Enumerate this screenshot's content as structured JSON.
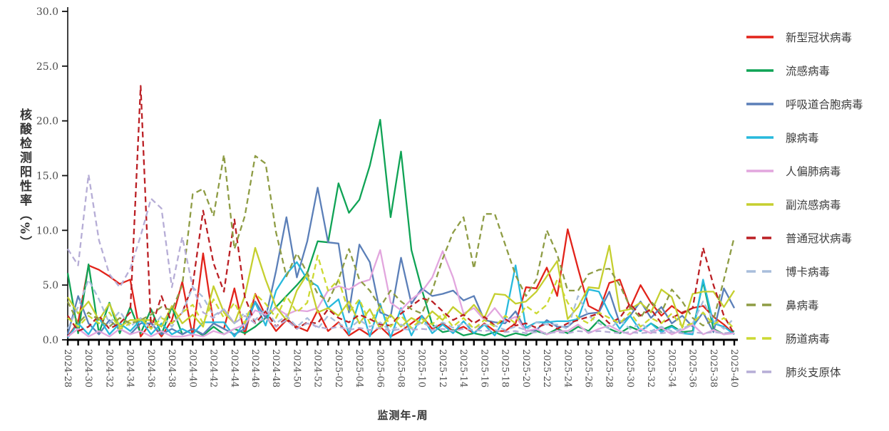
{
  "figure": {
    "background": "#ffffff",
    "x_axis_title": "监测年-周",
    "y_axis_title": "核酸检测阳性率（%）"
  },
  "chart_data": {
    "type": "line",
    "title": "",
    "xlabel": "监测年-周",
    "ylabel": "核酸检测阳性率（%）",
    "ylim": [
      0,
      30
    ],
    "ytick_step": 5,
    "ytick_labels": [
      "0.0",
      "5.0",
      "10.0",
      "15.0",
      "20.0",
      "25.0",
      "30.0"
    ],
    "grid": false,
    "legend_position": "right",
    "x_label_every": 2,
    "x_tick_labels_shown": [
      "2024-28",
      "2024-30",
      "2024-32",
      "2024-34",
      "2024-36",
      "2024-38",
      "2024-40",
      "2024-42",
      "2024-44",
      "2024-46",
      "2024-48",
      "2024-50",
      "2024-52",
      "2025-02",
      "2025-04",
      "2025-06",
      "2025-08",
      "2025-10",
      "2025-12",
      "2025-14",
      "2025-16",
      "2025-18",
      "2025-20",
      "2025-22",
      "2025-24",
      "2025-26",
      "2025-28",
      "2025-30",
      "2025-32",
      "2025-34",
      "2025-36",
      "2025-38",
      "2025-40"
    ],
    "x": [
      "2024-28",
      "2024-29",
      "2024-30",
      "2024-31",
      "2024-32",
      "2024-33",
      "2024-34",
      "2024-35",
      "2024-36",
      "2024-37",
      "2024-38",
      "2024-39",
      "2024-40",
      "2024-41",
      "2024-42",
      "2024-43",
      "2024-44",
      "2024-45",
      "2024-46",
      "2024-47",
      "2024-48",
      "2024-49",
      "2024-50",
      "2024-51",
      "2024-52",
      "2025-01",
      "2025-02",
      "2025-03",
      "2025-04",
      "2025-05",
      "2025-06",
      "2025-07",
      "2025-08",
      "2025-09",
      "2025-10",
      "2025-11",
      "2025-12",
      "2025-13",
      "2025-14",
      "2025-15",
      "2025-16",
      "2025-17",
      "2025-18",
      "2025-19",
      "2025-20",
      "2025-21",
      "2025-22",
      "2025-23",
      "2025-24",
      "2025-25",
      "2025-26",
      "2025-27",
      "2025-28",
      "2025-29",
      "2025-30",
      "2025-31",
      "2025-32",
      "2025-33",
      "2025-34",
      "2025-35",
      "2025-36",
      "2025-37",
      "2025-38",
      "2025-39",
      "2025-40"
    ],
    "series": [
      {
        "name": "新型冠状病毒",
        "color": "#e2231a",
        "dashed": false,
        "values": [
          0.3,
          1.6,
          6.8,
          6.4,
          5.8,
          5.1,
          5.5,
          0.3,
          1.6,
          0.3,
          1.8,
          5.3,
          0.3,
          7.9,
          1.5,
          1.0,
          4.7,
          0.5,
          4.2,
          2.2,
          0.8,
          1.8,
          1.2,
          0.8,
          2.7,
          0.8,
          1.6,
          0.4,
          1.0,
          0.4,
          1.2,
          0.3,
          0.8,
          1.5,
          2.2,
          1.0,
          1.5,
          0.8,
          1.2,
          0.6,
          1.5,
          0.8,
          0.8,
          1.5,
          4.8,
          4.7,
          6.6,
          4.0,
          10.1,
          6.5,
          3.1,
          2.6,
          5.2,
          5.5,
          2.9,
          5.0,
          3.4,
          2.2,
          3.1,
          2.4,
          2.9,
          3.1,
          2.1,
          1.4,
          0.5
        ]
      },
      {
        "name": "流感病毒",
        "color": "#0fa355",
        "dashed": false,
        "values": [
          6.1,
          0.6,
          6.9,
          0.6,
          3.4,
          0.6,
          3.0,
          0.6,
          2.8,
          0.5,
          3.0,
          0.5,
          1.0,
          0.4,
          1.2,
          0.5,
          1.0,
          0.6,
          1.2,
          2.0,
          3.0,
          4.0,
          5.0,
          6.1,
          9.0,
          8.9,
          14.3,
          11.6,
          12.8,
          15.9,
          20.1,
          11.2,
          17.2,
          8.2,
          4.6,
          1.4,
          0.7,
          0.9,
          0.4,
          0.6,
          0.4,
          0.7,
          0.3,
          0.6,
          0.4,
          0.8,
          0.5,
          1.0,
          0.6,
          1.2,
          0.8,
          1.8,
          1.0,
          0.6,
          1.2,
          0.8,
          1.5,
          0.9,
          1.3,
          0.7,
          0.8,
          5.3,
          1.0,
          0.5,
          0.8
        ]
      },
      {
        "name": "呼吸道合胞病毒",
        "color": "#5b7fb8",
        "dashed": false,
        "values": [
          0.5,
          4.0,
          1.5,
          0.5,
          1.8,
          1.0,
          0.5,
          1.5,
          1.5,
          0.5,
          1.0,
          0.5,
          1.0,
          0.5,
          1.5,
          1.0,
          0.5,
          1.0,
          3.5,
          2.0,
          6.3,
          11.2,
          5.7,
          9.0,
          13.9,
          8.9,
          8.8,
          2.5,
          8.7,
          7.1,
          2.5,
          2.1,
          7.5,
          3.3,
          4.7,
          4.0,
          4.2,
          4.5,
          3.6,
          4.0,
          1.8,
          1.6,
          1.5,
          2.6,
          0.8,
          0.9,
          1.8,
          1.2,
          1.2,
          2.0,
          2.4,
          2.5,
          4.4,
          1.5,
          2.2,
          3.5,
          2.0,
          3.0,
          1.5,
          2.2,
          1.2,
          2.5,
          0.7,
          4.7,
          2.9
        ]
      },
      {
        "name": "腺病毒",
        "color": "#27b9dc",
        "dashed": false,
        "values": [
          0.2,
          1.5,
          0.5,
          2.0,
          0.5,
          1.5,
          0.8,
          1.8,
          0.5,
          1.5,
          0.5,
          1.0,
          0.5,
          1.6,
          1.6,
          1.6,
          0.3,
          1.6,
          3.4,
          1.3,
          4.5,
          6.0,
          7.1,
          5.5,
          4.9,
          2.9,
          3.7,
          0.5,
          3.6,
          0.3,
          3.3,
          0.2,
          2.9,
          0.4,
          2.2,
          0.6,
          1.4,
          0.6,
          1.7,
          0.6,
          1.4,
          0.4,
          2.0,
          6.8,
          1.1,
          1.6,
          1.6,
          1.7,
          1.7,
          1.9,
          4.6,
          4.4,
          2.4,
          1.0,
          2.2,
          0.8,
          1.5,
          0.7,
          1.2,
          0.6,
          0.5,
          5.5,
          1.5,
          1.2,
          0.5
        ]
      },
      {
        "name": "人偏肺病毒",
        "color": "#e2a6de",
        "dashed": false,
        "values": [
          0.3,
          1.0,
          0.3,
          0.8,
          0.3,
          1.0,
          0.5,
          0.8,
          0.3,
          0.8,
          0.3,
          0.3,
          0.5,
          0.3,
          0.8,
          0.5,
          1.0,
          1.4,
          2.7,
          2.3,
          2.9,
          2.3,
          2.7,
          2.6,
          2.9,
          4.5,
          4.9,
          4.6,
          5.2,
          5.5,
          8.2,
          3.4,
          2.7,
          3.7,
          4.4,
          5.7,
          8.1,
          5.7,
          2.4,
          2.9,
          1.8,
          2.9,
          1.7,
          2.1,
          0.8,
          1.0,
          0.5,
          0.8,
          0.8,
          1.4,
          0.6,
          1.0,
          1.3,
          0.8,
          0.5,
          1.0,
          0.6,
          1.1,
          0.5,
          0.9,
          1.4,
          0.5,
          0.9,
          0.5,
          0.6
        ]
      },
      {
        "name": "副流感病毒",
        "color": "#c5cf2f",
        "dashed": false,
        "values": [
          3.9,
          2.4,
          3.5,
          1.8,
          3.3,
          1.2,
          1.8,
          1.8,
          1.8,
          1.2,
          3.1,
          1.5,
          2.3,
          1.2,
          4.9,
          2.5,
          1.5,
          4.0,
          8.4,
          5.5,
          3.0,
          1.8,
          4.5,
          6.0,
          2.5,
          2.9,
          2.2,
          3.5,
          1.5,
          2.8,
          1.0,
          2.3,
          1.2,
          2.0,
          1.5,
          2.6,
          1.8,
          3.0,
          2.2,
          3.2,
          2.0,
          4.2,
          4.1,
          3.3,
          3.5,
          4.4,
          5.8,
          7.2,
          1.9,
          3.0,
          4.8,
          4.7,
          8.6,
          2.6,
          2.8,
          3.4,
          2.5,
          4.6,
          3.9,
          1.1,
          4.2,
          4.4,
          4.4,
          3.0,
          4.5
        ]
      },
      {
        "name": "普通冠状病毒",
        "color": "#bb1f24",
        "dashed": true,
        "values": [
          2.2,
          0.8,
          1.2,
          2.2,
          1.0,
          1.5,
          2.5,
          23.2,
          1.0,
          4.0,
          1.5,
          2.5,
          5.0,
          11.8,
          7.0,
          4.4,
          11.0,
          3.9,
          1.5,
          2.6,
          1.2,
          2.0,
          1.0,
          1.6,
          1.5,
          2.8,
          2.0,
          1.6,
          2.3,
          1.9,
          1.4,
          1.3,
          2.4,
          3.1,
          3.8,
          3.5,
          2.6,
          1.8,
          2.3,
          1.5,
          2.1,
          1.3,
          1.9,
          1.3,
          1.5,
          1.1,
          1.5,
          1.0,
          1.5,
          1.8,
          2.1,
          2.4,
          1.5,
          2.0,
          3.3,
          2.2,
          2.8,
          1.5,
          2.0,
          2.5,
          2.9,
          8.4,
          5.0,
          2.2,
          0.5
        ]
      },
      {
        "name": "博卡病毒",
        "color": "#a8bddb",
        "dashed": true,
        "values": [
          1.0,
          3.0,
          5.5,
          3.7,
          1.5,
          2.6,
          1.2,
          2.0,
          1.0,
          2.2,
          1.2,
          2.5,
          4.8,
          3.9,
          2.2,
          2.8,
          1.5,
          2.5,
          1.8,
          2.8,
          1.5,
          2.2,
          1.2,
          2.0,
          1.0,
          2.2,
          1.5,
          1.0,
          1.8,
          1.2,
          1.6,
          0.8,
          1.4,
          1.0,
          1.6,
          1.1,
          1.6,
          1.1,
          1.5,
          1.1,
          1.4,
          1.3,
          0.9,
          1.2,
          0.9,
          1.6,
          1.4,
          1.4,
          1.0,
          4.0,
          2.2,
          1.5,
          1.0,
          1.8,
          1.0,
          1.5,
          0.8,
          1.2,
          0.8,
          1.0,
          1.5,
          3.5,
          1.8,
          1.0,
          2.0
        ]
      },
      {
        "name": "鼻病毒",
        "color": "#8e9c44",
        "dashed": true,
        "values": [
          3.5,
          1.5,
          2.5,
          1.8,
          1.2,
          2.0,
          1.5,
          1.8,
          2.3,
          3.0,
          2.7,
          5.0,
          13.3,
          13.8,
          11.3,
          16.9,
          8.3,
          11.3,
          16.8,
          16.1,
          9.8,
          5.8,
          7.9,
          6.1,
          4.2,
          3.5,
          5.5,
          8.3,
          5.5,
          4.5,
          3.0,
          4.5,
          3.5,
          2.8,
          2.4,
          4.5,
          7.4,
          9.8,
          11.2,
          6.5,
          11.5,
          11.5,
          8.7,
          5.9,
          4.0,
          5.5,
          10.0,
          7.8,
          4.5,
          4.5,
          6.0,
          6.4,
          6.5,
          5.0,
          3.0,
          2.0,
          3.5,
          2.5,
          4.6,
          3.5,
          2.0,
          1.3,
          1.8,
          5.5,
          9.4
        ]
      },
      {
        "name": "肠道病毒",
        "color": "#ccd932",
        "dashed": true,
        "values": [
          2.0,
          1.2,
          2.2,
          1.5,
          2.5,
          1.0,
          1.5,
          2.0,
          1.0,
          2.0,
          1.5,
          2.5,
          3.2,
          1.5,
          3.7,
          2.0,
          3.4,
          1.5,
          4.2,
          3.3,
          2.0,
          4.0,
          2.5,
          3.4,
          7.7,
          4.5,
          5.5,
          2.5,
          3.7,
          1.5,
          3.1,
          1.2,
          2.2,
          1.1,
          1.9,
          1.4,
          2.4,
          1.2,
          2.0,
          1.0,
          1.8,
          1.2,
          2.2,
          1.5,
          3.1,
          2.4,
          3.2,
          5.5,
          3.4,
          2.0,
          1.5,
          2.5,
          2.0,
          1.5,
          2.5,
          1.2,
          2.0,
          1.5,
          2.4,
          1.2,
          1.5,
          2.5,
          1.4,
          2.0,
          1.0
        ]
      },
      {
        "name": "肺炎支原体",
        "color": "#b6add6",
        "dashed": true,
        "values": [
          8.3,
          6.8,
          15.1,
          9.1,
          6.0,
          4.8,
          6.5,
          9.5,
          12.9,
          12.0,
          4.8,
          9.4,
          4.8,
          2.5,
          2.0,
          2.8,
          1.5,
          2.2,
          1.5,
          2.0,
          1.2,
          1.8,
          1.0,
          1.5,
          1.2,
          1.0,
          1.2,
          0.9,
          1.1,
          0.9,
          1.1,
          0.8,
          1.0,
          0.9,
          1.0,
          0.9,
          1.0,
          0.8,
          1.0,
          0.9,
          0.8,
          0.9,
          0.7,
          0.8,
          0.6,
          0.7,
          0.6,
          0.7,
          0.6,
          0.8,
          0.7,
          0.8,
          0.7,
          0.6,
          0.7,
          0.6,
          0.7,
          0.6,
          0.7,
          0.6,
          0.7,
          0.6,
          0.7,
          0.6,
          0.7
        ]
      }
    ]
  }
}
